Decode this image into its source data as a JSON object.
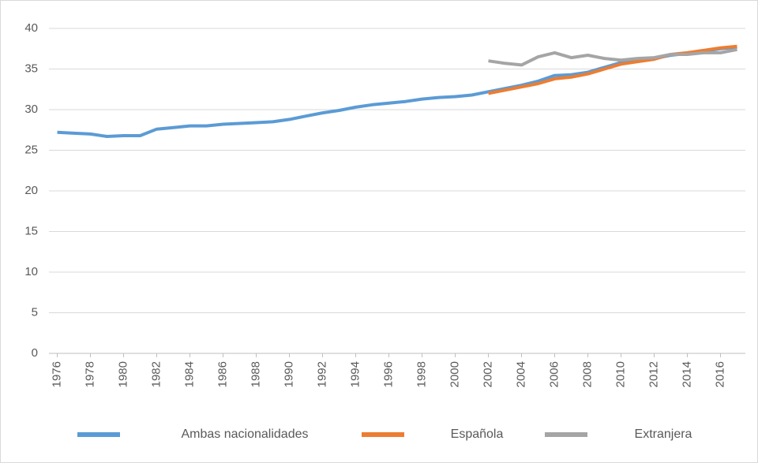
{
  "chart_data": {
    "type": "line",
    "x": [
      1976,
      1977,
      1978,
      1979,
      1980,
      1981,
      1982,
      1983,
      1984,
      1985,
      1986,
      1987,
      1988,
      1989,
      1990,
      1991,
      1992,
      1993,
      1994,
      1995,
      1996,
      1997,
      1998,
      1999,
      2000,
      2001,
      2002,
      2003,
      2004,
      2005,
      2006,
      2007,
      2008,
      2009,
      2010,
      2011,
      2012,
      2013,
      2014,
      2015,
      2016,
      2017
    ],
    "xlim": [
      1975.5,
      2017.5
    ],
    "xticks": [
      1976,
      1978,
      1980,
      1982,
      1984,
      1986,
      1988,
      1990,
      1992,
      1994,
      1996,
      1998,
      2000,
      2002,
      2004,
      2006,
      2008,
      2010,
      2012,
      2014,
      2016
    ],
    "ylim": [
      0,
      40
    ],
    "yticks": [
      0,
      5,
      10,
      15,
      20,
      25,
      30,
      35,
      40
    ],
    "grid": true,
    "legend": "bottom",
    "series": [
      {
        "name": "Ambas nacionalidades",
        "color": "#5b9bd5",
        "values": [
          27.2,
          27.1,
          27.0,
          26.7,
          26.8,
          26.8,
          27.6,
          27.8,
          28.0,
          28.0,
          28.2,
          28.3,
          28.4,
          28.5,
          28.8,
          29.2,
          29.6,
          29.9,
          30.3,
          30.6,
          30.8,
          31.0,
          31.3,
          31.5,
          31.6,
          31.8,
          32.2,
          32.6,
          33.0,
          33.5,
          34.2,
          34.3,
          34.6,
          35.2,
          35.8,
          36.0,
          36.3,
          36.7,
          36.9,
          37.2,
          37.5,
          37.7
        ]
      },
      {
        "name": "Española",
        "color": "#ed7d31",
        "values": [
          null,
          null,
          null,
          null,
          null,
          null,
          null,
          null,
          null,
          null,
          null,
          null,
          null,
          null,
          null,
          null,
          null,
          null,
          null,
          null,
          null,
          null,
          null,
          null,
          null,
          null,
          32.0,
          32.4,
          32.8,
          33.2,
          33.8,
          34.0,
          34.4,
          35.0,
          35.6,
          35.9,
          36.2,
          36.8,
          37.0,
          37.3,
          37.6,
          37.8
        ]
      },
      {
        "name": "Extranjera",
        "color": "#a5a5a5",
        "values": [
          null,
          null,
          null,
          null,
          null,
          null,
          null,
          null,
          null,
          null,
          null,
          null,
          null,
          null,
          null,
          null,
          null,
          null,
          null,
          null,
          null,
          null,
          null,
          null,
          null,
          null,
          36.0,
          35.7,
          35.5,
          36.5,
          37.0,
          36.4,
          36.7,
          36.3,
          36.1,
          36.3,
          36.4,
          36.8,
          36.8,
          37.0,
          37.0,
          37.4
        ]
      }
    ]
  }
}
